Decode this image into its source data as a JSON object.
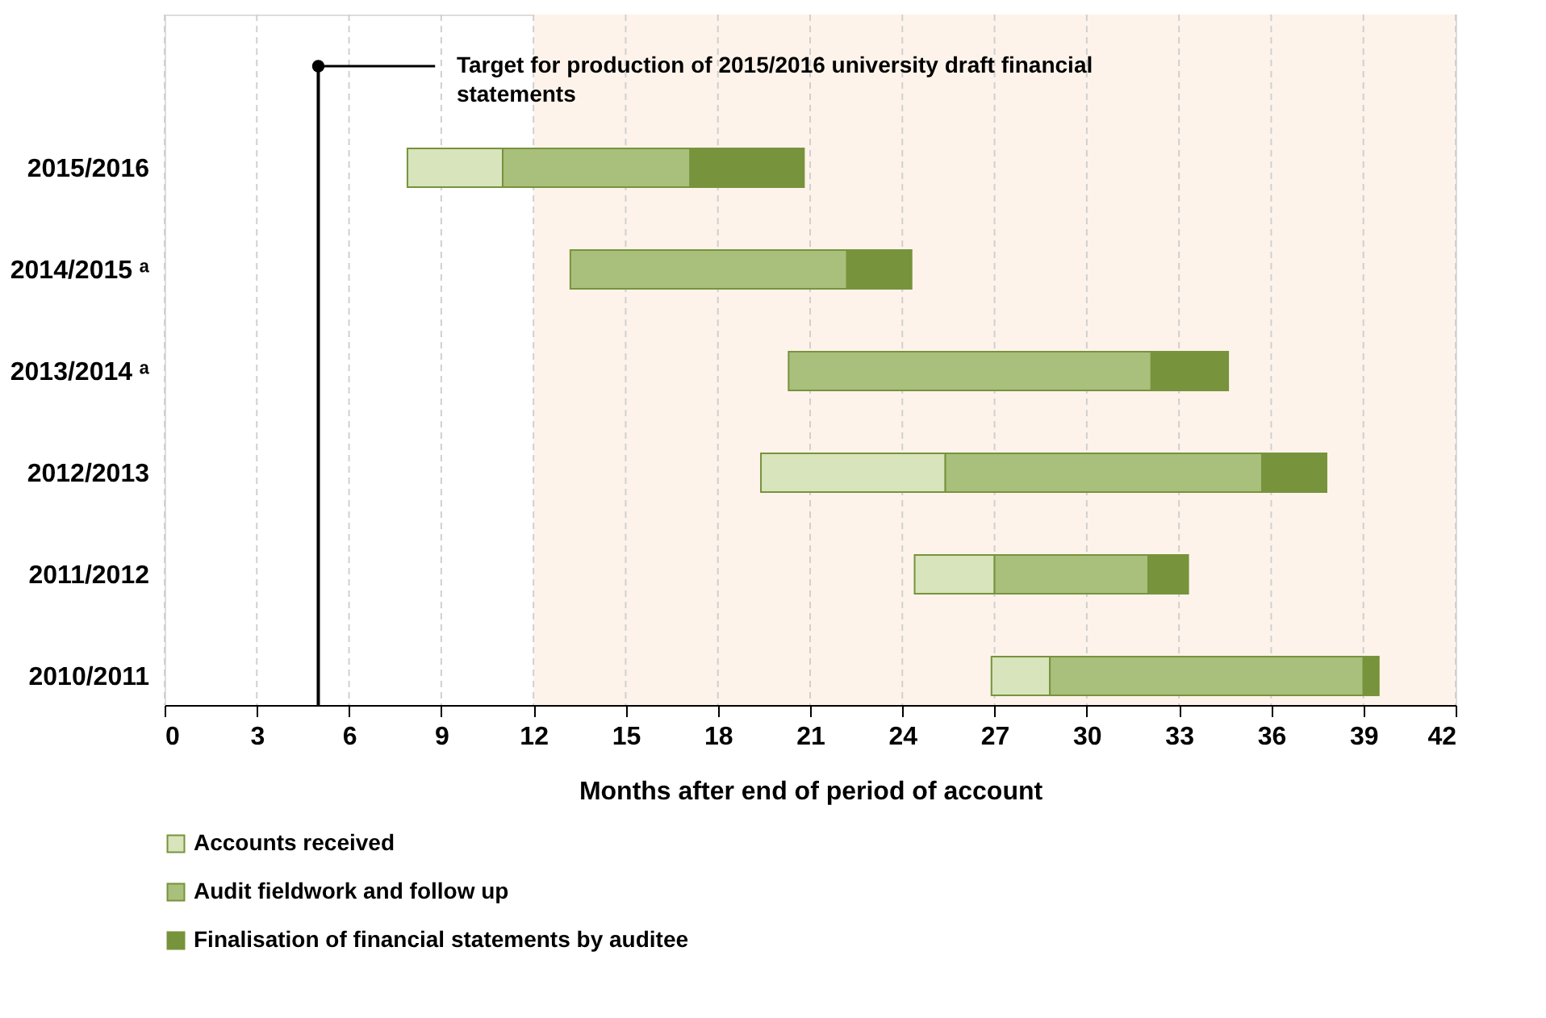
{
  "chart_data": {
    "type": "bar",
    "orientation": "horizontal",
    "categories": [
      "2015/2016",
      "2014/2015 ᵃ",
      "2013/2014 ᵃ",
      "2012/2013",
      "2011/2012",
      "2010/2011"
    ],
    "series": [
      {
        "name": "Accounts received",
        "color": "#d8e4bc",
        "base": [
          7.9,
          null,
          null,
          19.4,
          24.4,
          26.9
        ],
        "values": [
          3.1,
          null,
          null,
          6.0,
          2.6,
          1.9
        ]
      },
      {
        "name": "Audit fieldwork and follow up",
        "color": "#a9bf7c",
        "base": [
          11.0,
          13.2,
          20.3,
          25.4,
          27.0,
          28.8
        ],
        "values": [
          6.1,
          9.0,
          11.8,
          10.3,
          5.0,
          10.2
        ]
      },
      {
        "name": "Finalisation of financial statements by auditee",
        "color": "#77933c",
        "base": [
          17.1,
          22.2,
          32.1,
          35.7,
          32.0,
          39.0
        ],
        "values": [
          3.7,
          2.1,
          2.5,
          2.1,
          1.3,
          0.5
        ]
      }
    ],
    "xlabel": "Months after end of period of account",
    "xlim": [
      0,
      42
    ],
    "xticks": [
      0,
      3,
      6,
      9,
      12,
      15,
      18,
      21,
      24,
      27,
      30,
      33,
      36,
      39,
      42
    ],
    "grid": "x",
    "legend": "bottom",
    "ref_lines": [
      {
        "axis": "x",
        "value": 5,
        "label": "Target for production of 2015/2016 university draft financial statements",
        "color": "#000000"
      }
    ],
    "bands": [
      {
        "axis": "x",
        "from": 12,
        "to": 42,
        "color": "#fdf3ea"
      }
    ]
  }
}
